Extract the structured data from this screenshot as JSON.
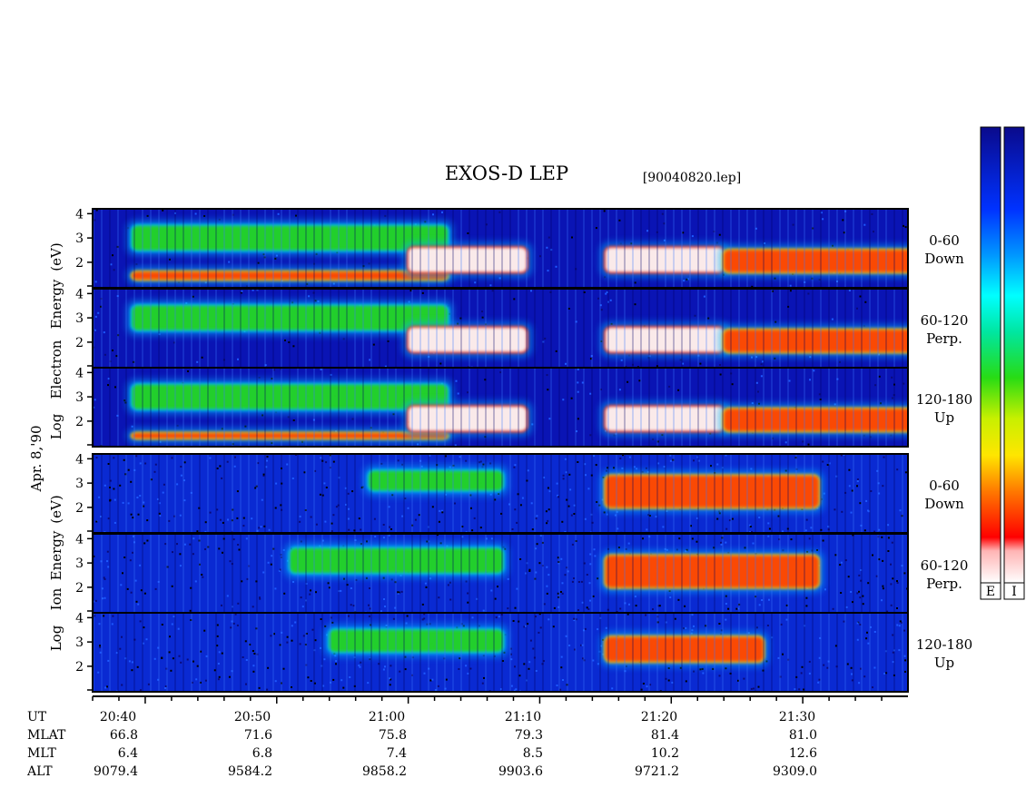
{
  "title": "EXOS-D LEP",
  "filename": "[90040820.lep]",
  "electron_ylabel": [
    "Log",
    "Electron",
    "Energy",
    "(eV)"
  ],
  "date_label": "Apr. 8,'90",
  "ion_ylabel": [
    "Log",
    "Ion",
    "Energy",
    "(eV)"
  ],
  "colorbar_labels": [
    "E",
    "I"
  ],
  "colors": {
    "background_blue": "#0a1aa0",
    "noise_black": "#000000",
    "colormap": [
      "#0a1696",
      "#0032ff",
      "#00c8ff",
      "#00e6a0",
      "#28d214",
      "#e6f000",
      "#ffa000",
      "#ff1e00",
      "#ffffff"
    ]
  },
  "panels": [
    {
      "species": "electron",
      "label_top": "0-60",
      "label_bottom": "Down"
    },
    {
      "species": "electron",
      "label_top": "60-120",
      "label_bottom": "Perp."
    },
    {
      "species": "electron",
      "label_top": "120-180",
      "label_bottom": "Up"
    },
    {
      "species": "ion",
      "label_top": "0-60",
      "label_bottom": "Down"
    },
    {
      "species": "ion",
      "label_top": "60-120",
      "label_bottom": "Perp."
    },
    {
      "species": "ion",
      "label_top": "120-180",
      "label_bottom": "Up"
    }
  ],
  "ephemeris": {
    "row_labels": [
      "UT",
      "MLAT",
      "MLT",
      "ALT"
    ],
    "columns": [
      {
        "UT": "20:40",
        "MLAT": "66.8",
        "MLT": "6.4",
        "ALT": "9079.4"
      },
      {
        "UT": "20:50",
        "MLAT": "71.6",
        "MLT": "6.8",
        "ALT": "9584.2"
      },
      {
        "UT": "21:00",
        "MLAT": "75.8",
        "MLT": "7.4",
        "ALT": "9858.2"
      },
      {
        "UT": "21:10",
        "MLAT": "79.3",
        "MLT": "8.5",
        "ALT": "9903.6"
      },
      {
        "UT": "21:20",
        "MLAT": "81.4",
        "MLT": "10.2",
        "ALT": "9721.2"
      },
      {
        "UT": "21:30",
        "MLAT": "81.0",
        "MLT": "12.6",
        "ALT": "9309.0"
      }
    ]
  },
  "chart_data": {
    "type": "heatmap",
    "title": "EXOS-D LEP",
    "xlabel": "UT",
    "ylabel_electron": "Log Electron Energy (eV)",
    "ylabel_ion": "Log Ion Energy (eV)",
    "x_ticks": [
      "20:40",
      "20:50",
      "21:00",
      "21:10",
      "21:20",
      "21:30"
    ],
    "ylim": [
      1,
      4.2
    ],
    "yticks": [
      2,
      3,
      4
    ],
    "series": [
      {
        "name": "Electron 0-60 Down",
        "features": [
          {
            "t": [
              20.65,
              21.05
            ],
            "logE": [
              1.3,
              1.6
            ],
            "level": "high"
          },
          {
            "t": [
              20.65,
              21.05
            ],
            "logE": [
              2.5,
              3.5
            ],
            "level": "medium"
          },
          {
            "t": [
              21.0,
              21.15
            ],
            "logE": [
              1.6,
              2.6
            ],
            "level": "peak"
          },
          {
            "t": [
              21.25,
              21.4
            ],
            "logE": [
              1.6,
              2.6
            ],
            "level": "peak"
          },
          {
            "t": [
              21.4,
              21.65
            ],
            "logE": [
              1.6,
              2.5
            ],
            "level": "high"
          }
        ]
      },
      {
        "name": "Electron 60-120 Perp.",
        "features": [
          {
            "t": [
              20.65,
              21.05
            ],
            "logE": [
              2.5,
              3.5
            ],
            "level": "medium"
          },
          {
            "t": [
              21.0,
              21.15
            ],
            "logE": [
              1.6,
              2.6
            ],
            "level": "peak"
          },
          {
            "t": [
              21.25,
              21.4
            ],
            "logE": [
              1.6,
              2.6
            ],
            "level": "peak"
          },
          {
            "t": [
              21.4,
              21.65
            ],
            "logE": [
              1.6,
              2.5
            ],
            "level": "high"
          }
        ]
      },
      {
        "name": "Electron 120-180 Up",
        "features": [
          {
            "t": [
              20.65,
              21.05
            ],
            "logE": [
              1.3,
              1.5
            ],
            "level": "high"
          },
          {
            "t": [
              20.65,
              21.05
            ],
            "logE": [
              2.5,
              3.5
            ],
            "level": "medium"
          },
          {
            "t": [
              21.0,
              21.15
            ],
            "logE": [
              1.6,
              2.6
            ],
            "level": "peak"
          },
          {
            "t": [
              21.25,
              21.4
            ],
            "logE": [
              1.6,
              2.6
            ],
            "level": "peak"
          },
          {
            "t": [
              21.4,
              21.65
            ],
            "logE": [
              1.6,
              2.5
            ],
            "level": "high"
          }
        ]
      },
      {
        "name": "Ion 0-60 Down",
        "features": [
          {
            "t": [
              20.95,
              21.12
            ],
            "logE": [
              2.7,
              3.5
            ],
            "level": "medium"
          },
          {
            "t": [
              21.25,
              21.52
            ],
            "logE": [
              2.0,
              3.3
            ],
            "level": "high"
          }
        ]
      },
      {
        "name": "Ion 60-120 Perp.",
        "features": [
          {
            "t": [
              20.85,
              21.12
            ],
            "logE": [
              2.6,
              3.6
            ],
            "level": "medium"
          },
          {
            "t": [
              21.25,
              21.52
            ],
            "logE": [
              2.0,
              3.3
            ],
            "level": "high"
          }
        ]
      },
      {
        "name": "Ion 120-180 Up",
        "features": [
          {
            "t": [
              20.9,
              21.12
            ],
            "logE": [
              2.6,
              3.5
            ],
            "level": "medium"
          },
          {
            "t": [
              21.25,
              21.45
            ],
            "logE": [
              2.2,
              3.2
            ],
            "level": "high"
          }
        ]
      }
    ]
  }
}
